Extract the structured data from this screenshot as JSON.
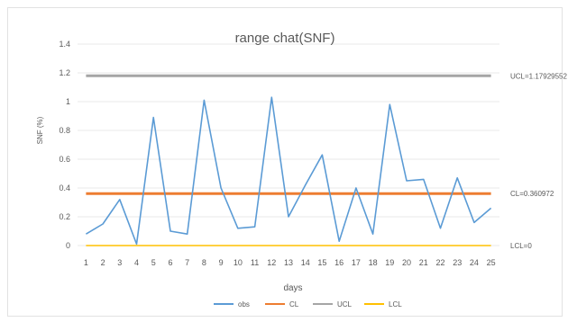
{
  "chart_data": {
    "type": "line",
    "title": "range chat(SNF)",
    "xlabel": "days",
    "ylabel": "SNF (%)",
    "categories": [
      "1",
      "2",
      "3",
      "4",
      "5",
      "6",
      "7",
      "8",
      "9",
      "10",
      "11",
      "12",
      "13",
      "14",
      "15",
      "16",
      "17",
      "18",
      "19",
      "20",
      "21",
      "22",
      "23",
      "24",
      "25"
    ],
    "ylim": [
      0,
      1.4
    ],
    "yticks": [
      "0",
      "0.2",
      "0.4",
      "0.6",
      "0.8",
      "1",
      "1.2",
      "1.4"
    ],
    "grid": true,
    "legend_position": "bottom",
    "series": [
      {
        "name": "obs",
        "color": "#5b9bd5",
        "values": [
          0.08,
          0.15,
          0.32,
          0.01,
          0.89,
          0.1,
          0.08,
          1.01,
          0.4,
          0.12,
          0.13,
          1.03,
          0.2,
          0.42,
          0.63,
          0.03,
          0.4,
          0.08,
          0.98,
          0.45,
          0.46,
          0.12,
          0.47,
          0.16,
          0.26
        ]
      },
      {
        "name": "CL",
        "color": "#ed7d31",
        "values": [
          0.360972,
          0.360972,
          0.360972,
          0.360972,
          0.360972,
          0.360972,
          0.360972,
          0.360972,
          0.360972,
          0.360972,
          0.360972,
          0.360972,
          0.360972,
          0.360972,
          0.360972,
          0.360972,
          0.360972,
          0.360972,
          0.360972,
          0.360972,
          0.360972,
          0.360972,
          0.360972,
          0.360972,
          0.360972
        ]
      },
      {
        "name": "UCL",
        "color": "#a5a5a5",
        "values": [
          1.17929552,
          1.17929552,
          1.17929552,
          1.17929552,
          1.17929552,
          1.17929552,
          1.17929552,
          1.17929552,
          1.17929552,
          1.17929552,
          1.17929552,
          1.17929552,
          1.17929552,
          1.17929552,
          1.17929552,
          1.17929552,
          1.17929552,
          1.17929552,
          1.17929552,
          1.17929552,
          1.17929552,
          1.17929552,
          1.17929552,
          1.17929552,
          1.17929552
        ]
      },
      {
        "name": "LCL",
        "color": "#ffc000",
        "values": [
          0,
          0,
          0,
          0,
          0,
          0,
          0,
          0,
          0,
          0,
          0,
          0,
          0,
          0,
          0,
          0,
          0,
          0,
          0,
          0,
          0,
          0,
          0,
          0,
          0
        ]
      }
    ],
    "annotations": [
      {
        "text": "UCL=1.17929552",
        "series": "UCL"
      },
      {
        "text": "CL=0.360972",
        "series": "CL"
      },
      {
        "text": "LCL=0",
        "series": "LCL"
      }
    ]
  }
}
